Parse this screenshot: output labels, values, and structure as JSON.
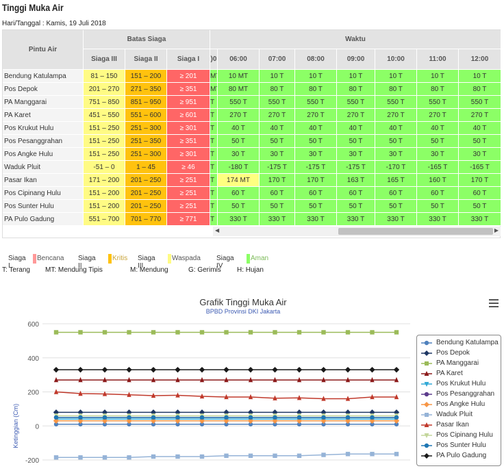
{
  "page": {
    "title": "Tinggi Muka Air",
    "date_line": "Hari/Tanggal : Kamis, 19 Juli 2018"
  },
  "table": {
    "h_pintu": "Pintu Air",
    "h_batas": "Batas Siaga",
    "h_waktu": "Waktu",
    "h_s3": "Siaga III",
    "h_s2": "Siaga II",
    "h_s1": "Siaga I",
    "times": [
      ")0",
      "06:00",
      "07:00",
      "08:00",
      "09:00",
      "10:00",
      "11:00",
      "12:00"
    ],
    "rows": [
      {
        "name": "Bendung Katulampa",
        "s3": "81 – 150",
        "s2": "151 – 200",
        "s1": "≥ 201",
        "vals": [
          "MT",
          "10 MT",
          "10 T",
          "10 T",
          "10 T",
          "10 T",
          "10 T",
          "10 T"
        ]
      },
      {
        "name": "Pos Depok",
        "s3": "201 – 270",
        "s2": "271 – 350",
        "s1": "≥ 351",
        "vals": [
          "MT",
          "80 MT",
          "80 T",
          "80 T",
          "80 T",
          "80 T",
          "80 T",
          "80 T"
        ]
      },
      {
        "name": "PA Manggarai",
        "s3": "751 – 850",
        "s2": "851 – 950",
        "s1": "≥ 951",
        "vals": [
          "T",
          "550 T",
          "550 T",
          "550 T",
          "550 T",
          "550 T",
          "550 T",
          "550 T"
        ]
      },
      {
        "name": "PA Karet",
        "s3": "451 – 550",
        "s2": "551 – 600",
        "s1": "≥ 601",
        "vals": [
          "T",
          "270 T",
          "270 T",
          "270 T",
          "270 T",
          "270 T",
          "270 T",
          "270 T"
        ]
      },
      {
        "name": "Pos Krukut Hulu",
        "s3": "151 – 250",
        "s2": "251 – 300",
        "s1": "≥ 301",
        "vals": [
          "T",
          "40 T",
          "40 T",
          "40 T",
          "40 T",
          "40 T",
          "40 T",
          "40 T"
        ]
      },
      {
        "name": "Pos Pesanggrahan",
        "s3": "151 – 250",
        "s2": "251 – 350",
        "s1": "≥ 351",
        "vals": [
          "T",
          "50 T",
          "50 T",
          "50 T",
          "50 T",
          "50 T",
          "50 T",
          "50 T"
        ]
      },
      {
        "name": "Pos Angke Hulu",
        "s3": "151 – 250",
        "s2": "251 – 300",
        "s1": "≥ 301",
        "vals": [
          "T",
          "30 T",
          "30 T",
          "30 T",
          "30 T",
          "30 T",
          "30 T",
          "30 T"
        ]
      },
      {
        "name": "Waduk Pluit",
        "s3": "-51 – 0",
        "s2": "1 – 45",
        "s1": "≥ 46",
        "vals": [
          "T",
          "-180 T",
          "-175 T",
          "-175 T",
          "-175 T",
          "-170 T",
          "-165 T",
          "-165 T"
        ]
      },
      {
        "name": "Pasar Ikan",
        "s3": "171 – 200",
        "s2": "201 – 250",
        "s1": "≥ 251",
        "vals": [
          "T",
          "174 MT",
          "170 T",
          "170 T",
          "163 T",
          "165 T",
          "160 T",
          "170 T"
        ],
        "warn": [
          1
        ]
      },
      {
        "name": "Pos Cipinang Hulu",
        "s3": "151 – 200",
        "s2": "201 – 250",
        "s1": "≥ 251",
        "vals": [
          "T",
          "60 T",
          "60 T",
          "60 T",
          "60 T",
          "60 T",
          "60 T",
          "60 T"
        ]
      },
      {
        "name": "Pos Sunter Hulu",
        "s3": "151 – 200",
        "s2": "201 – 250",
        "s1": "≥ 251",
        "vals": [
          "T",
          "50 T",
          "50 T",
          "50 T",
          "50 T",
          "50 T",
          "50 T",
          "50 T"
        ]
      },
      {
        "name": "PA Pulo Gadung",
        "s3": "551 – 700",
        "s2": "701 – 770",
        "s1": "≥ 771",
        "vals": [
          "T",
          "330 T",
          "330 T",
          "330 T",
          "330 T",
          "330 T",
          "330 T",
          "330 T"
        ]
      }
    ]
  },
  "legend": {
    "siaga_items": [
      {
        "label": "Siaga I",
        "desc": "Bencana",
        "color": "#ff9999"
      },
      {
        "label": "Siaga II",
        "desc": "Kritis",
        "color": "#ffc20e"
      },
      {
        "label": "Siaga III",
        "desc": "Waspada",
        "color": "#fffb84"
      },
      {
        "label": "Siaga IV",
        "desc": "Aman",
        "color": "#8cff66"
      }
    ],
    "abbrev": [
      "T: Terang",
      "MT: Mendung Tipis",
      "M: Mendung",
      "G: Gerimis",
      "H: Hujan"
    ]
  },
  "chart": {
    "title": "Grafik Tinggi Muka Air",
    "subtitle": "BPBD Provinsi DKI Jakarta"
  },
  "chart_data": {
    "type": "line",
    "title": "Grafik Tinggi Muka Air",
    "subtitle": "BPBD Provinsi DKI Jakarta",
    "ylabel": "Ketinggian (Cm)",
    "ylim": [
      -200,
      600
    ],
    "yticks": [
      -200,
      0,
      200,
      400,
      600
    ],
    "series": [
      {
        "name": "Bendung Katulampa",
        "color": "#4f81bd",
        "marker": "circle",
        "values": [
          10,
          10,
          10,
          10,
          10,
          10,
          10,
          10,
          10,
          10,
          10,
          10,
          10,
          10,
          10
        ]
      },
      {
        "name": "Pos Depok",
        "color": "#1f3864",
        "marker": "diamond",
        "values": [
          80,
          80,
          80,
          80,
          80,
          80,
          80,
          80,
          80,
          80,
          80,
          80,
          80,
          80,
          80
        ]
      },
      {
        "name": "PA Manggarai",
        "color": "#9bbb59",
        "marker": "square",
        "values": [
          550,
          550,
          550,
          550,
          550,
          550,
          550,
          550,
          550,
          550,
          550,
          550,
          550,
          550,
          550
        ]
      },
      {
        "name": "PA Karet",
        "color": "#8b1a1a",
        "marker": "triangle",
        "values": [
          270,
          270,
          270,
          270,
          270,
          270,
          270,
          270,
          270,
          270,
          270,
          270,
          270,
          270,
          270
        ]
      },
      {
        "name": "Pos Krukut Hulu",
        "color": "#31a9d6",
        "marker": "triangle-down",
        "values": [
          40,
          40,
          40,
          40,
          40,
          40,
          40,
          40,
          40,
          40,
          40,
          40,
          40,
          40,
          40
        ]
      },
      {
        "name": "Pos Pesanggrahan",
        "color": "#5c3c8c",
        "marker": "circle",
        "values": [
          50,
          50,
          50,
          50,
          50,
          50,
          50,
          50,
          50,
          50,
          50,
          50,
          50,
          50,
          50
        ]
      },
      {
        "name": "Pos Angke Hulu",
        "color": "#f79646",
        "marker": "diamond",
        "values": [
          30,
          30,
          30,
          30,
          30,
          30,
          30,
          30,
          30,
          30,
          30,
          30,
          30,
          30,
          30
        ]
      },
      {
        "name": "Waduk Pluit",
        "color": "#95b3d7",
        "marker": "square",
        "values": [
          -185,
          -185,
          -185,
          -185,
          -180,
          -180,
          -180,
          -175,
          -175,
          -175,
          -175,
          -170,
          -165,
          -165,
          -165
        ]
      },
      {
        "name": "Pasar Ikan",
        "color": "#c0392b",
        "marker": "triangle",
        "values": [
          200,
          190,
          188,
          183,
          178,
          180,
          174,
          170,
          170,
          163,
          165,
          160,
          160,
          170,
          170
        ]
      },
      {
        "name": "Pos Cipinang Hulu",
        "color": "#c3d69b",
        "marker": "triangle-down",
        "values": [
          60,
          60,
          60,
          60,
          60,
          60,
          60,
          60,
          60,
          60,
          60,
          60,
          60,
          60,
          60
        ]
      },
      {
        "name": "Pos Sunter Hulu",
        "color": "#1f77b4",
        "marker": "circle",
        "values": [
          50,
          50,
          50,
          50,
          50,
          50,
          50,
          50,
          50,
          50,
          50,
          50,
          50,
          50,
          50
        ]
      },
      {
        "name": "PA Pulo Gadung",
        "color": "#1a1a1a",
        "marker": "diamond",
        "values": [
          330,
          330,
          330,
          330,
          330,
          330,
          330,
          330,
          330,
          330,
          330,
          330,
          330,
          330,
          330
        ]
      }
    ]
  }
}
